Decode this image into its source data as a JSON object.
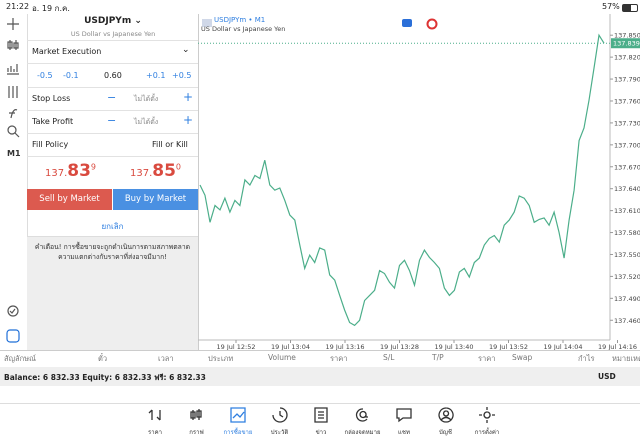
{
  "status_bar": {
    "time": "21:22",
    "date": "อ. 19 ก.ค.",
    "battery": "57%"
  },
  "toolbar": {
    "timeframe": "M1"
  },
  "order_panel": {
    "symbol": "USDJPYm",
    "description": "US Dollar vs Japanese Yen",
    "execution": "Market Execution",
    "volume_steps": [
      "-0.5",
      "-0.1",
      "+0.1",
      "+0.5"
    ],
    "volume": "0.60",
    "stop_loss": {
      "label": "Stop Loss",
      "value": "ไม่ได้ตั้ง"
    },
    "take_profit": {
      "label": "Take Profit",
      "value": "ไม่ได้ตั้ง"
    },
    "fill_policy": {
      "label": "Fill Policy",
      "value": "Fill or Kill"
    },
    "bid": {
      "main": "137.",
      "big": "83",
      "last": "9"
    },
    "ask": {
      "main": "137.",
      "big": "85",
      "last": "0"
    },
    "sell_button": "Sell by Market",
    "buy_button": "Buy by Market",
    "cancel": "ยกเลิก",
    "warning": "คำเตือน! การซื้อขายจะถูกดำเนินการตามสภาพตลาด ความแตกต่างกับราคาที่ส่งอาจมีมาก!"
  },
  "chart": {
    "type": "line",
    "title": "USDJPYm • M1",
    "subtitle": "US Dollar vs Japanese Yen",
    "color": "#4cae8a",
    "values": [
      137.645,
      137.631,
      137.594,
      137.617,
      137.611,
      137.627,
      137.608,
      137.624,
      137.617,
      137.652,
      137.645,
      137.658,
      137.654,
      137.679,
      137.645,
      137.638,
      137.641,
      137.624,
      137.604,
      137.597,
      137.563,
      137.531,
      137.549,
      137.539,
      137.559,
      137.556,
      137.522,
      137.515,
      137.494,
      137.474,
      137.457,
      137.453,
      137.46,
      137.487,
      137.494,
      137.501,
      137.528,
      137.524,
      137.512,
      137.504,
      137.535,
      137.542,
      137.528,
      137.508,
      137.542,
      137.556,
      137.546,
      137.539,
      137.531,
      137.504,
      137.494,
      137.501,
      137.526,
      137.531,
      137.519,
      137.539,
      137.545,
      137.563,
      137.572,
      137.576,
      137.567,
      137.59,
      137.597,
      137.608,
      137.63,
      137.627,
      137.617,
      137.594,
      137.598,
      137.6,
      137.59,
      137.608,
      137.58,
      137.545,
      137.597,
      137.638,
      137.706,
      137.723,
      137.761,
      137.805,
      137.85,
      137.839
    ],
    "last_price": 137.839,
    "ylim": [
      137.433,
      137.879
    ],
    "yticks": [
      {
        "value": 137.85,
        "label": "137.850"
      },
      {
        "value": 137.82,
        "label": "137.820"
      },
      {
        "value": 137.79,
        "label": "137.790"
      },
      {
        "value": 137.76,
        "label": "137.760"
      },
      {
        "value": 137.73,
        "label": "137.730"
      },
      {
        "value": 137.7,
        "label": "137.700"
      },
      {
        "value": 137.67,
        "label": "137.670"
      },
      {
        "value": 137.64,
        "label": "137.640"
      },
      {
        "value": 137.61,
        "label": "137.610"
      },
      {
        "value": 137.58,
        "label": "137.580"
      },
      {
        "value": 137.55,
        "label": "137.550"
      },
      {
        "value": 137.52,
        "label": "137.520"
      },
      {
        "value": 137.49,
        "label": "137.490"
      },
      {
        "value": 137.46,
        "label": "137.460"
      }
    ],
    "xticks": [
      "19 Jul 12:52",
      "19 Jul 13:04",
      "19 Jul 13:16",
      "19 Jul 13:28",
      "19 Jul 13:40",
      "19 Jul 13:52",
      "19 Jul 14:04",
      "19 Jul 14:16"
    ]
  },
  "terminal": {
    "columns": [
      "สัญลักษณ์",
      "ตั๋ว",
      "เวลา",
      "ประเภท",
      "Volume",
      "ราคา",
      "S/L",
      "T/P",
      "ราคา",
      "Swap",
      "กำไร",
      "หมายเหตุ"
    ],
    "balance_line": "Balance: 6 832.33  Equity: 6 832.33  ฟรี: 6 832.33",
    "currency": "USD"
  },
  "tabs": [
    "ราคา",
    "กราฟ",
    "การซื้อขาย",
    "ประวัติ",
    "ข่าว",
    "กล่องจดหมาย",
    "แชท",
    "บัญชี",
    "การตั้งค่า"
  ]
}
